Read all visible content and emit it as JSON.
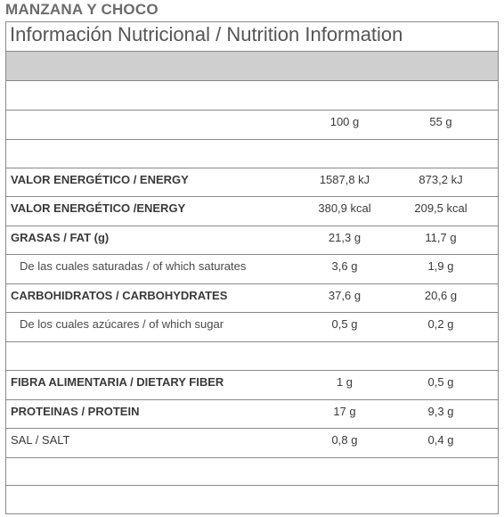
{
  "product_name": "MANZANA Y CHOCO",
  "table_title": "Información Nutricional / Nutrition Information",
  "columns": {
    "per_100": "100 g",
    "per_portion": "55 g"
  },
  "rows": [
    {
      "label": "VALOR ENERGÉTICO / ENERGY",
      "v100": "1587,8 kJ",
      "vportion": "873,2 kJ"
    },
    {
      "label": "VALOR ENERGÉTICO /ENERGY",
      "v100": "380,9 kcal",
      "vportion": "209,5 kcal"
    },
    {
      "label": "GRASAS / FAT (g)",
      "v100": "21,3 g",
      "vportion": "11,7 g"
    },
    {
      "label": "De las cuales saturadas / of which saturates",
      "v100": "3,6 g",
      "vportion": "1,9 g"
    },
    {
      "label": "CARBOHIDRATOS / CARBOHYDRATES",
      "v100": "37,6 g",
      "vportion": "20,6 g"
    },
    {
      "label": "De los cuales azúcares / of which sugar",
      "v100": "0,5 g",
      "vportion": "0,2 g"
    },
    {
      "label": "FIBRA ALIMENTARIA / DIETARY FIBER",
      "v100": "1 g",
      "vportion": "0,5 g"
    },
    {
      "label": "PROTEINAS / PROTEIN",
      "v100": "17 g",
      "vportion": "9,3 g"
    },
    {
      "label": "SAL / SALT",
      "v100": "0,8 g",
      "vportion": "0,4 g"
    }
  ]
}
